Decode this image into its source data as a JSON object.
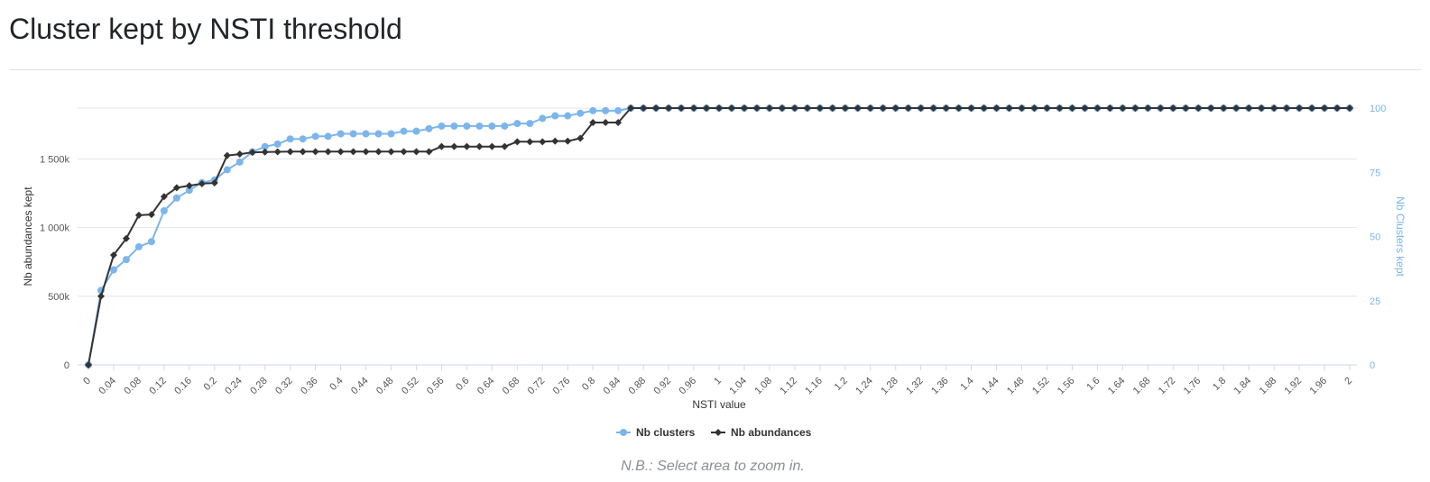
{
  "page": {
    "title": "Cluster kept by NSTI threshold",
    "footnote": "N.B.: Select area to zoom in."
  },
  "colors": {
    "clusters": "#7cb5ec",
    "abundances": "#333333",
    "grid": "#e6e6e6"
  },
  "chart_data": {
    "type": "line",
    "xlabel": "NSTI value",
    "ylabel_left": "Nb abundances kept",
    "ylabel_right": "Nb Clusters kept",
    "x": [
      0,
      0.02,
      0.04,
      0.06,
      0.08,
      0.1,
      0.12,
      0.14,
      0.16,
      0.18,
      0.2,
      0.22,
      0.24,
      0.26,
      0.28,
      0.3,
      0.32,
      0.34,
      0.36,
      0.38,
      0.4,
      0.42,
      0.44,
      0.46,
      0.48,
      0.5,
      0.52,
      0.54,
      0.56,
      0.58,
      0.6,
      0.62,
      0.64,
      0.66,
      0.68,
      0.7,
      0.72,
      0.74,
      0.76,
      0.78,
      0.8,
      0.82,
      0.84,
      0.86,
      0.88,
      0.9,
      0.92,
      0.94,
      0.96,
      0.98,
      1,
      1.02,
      1.04,
      1.06,
      1.08,
      1.1,
      1.12,
      1.14,
      1.16,
      1.18,
      1.2,
      1.22,
      1.24,
      1.26,
      1.28,
      1.3,
      1.32,
      1.34,
      1.36,
      1.38,
      1.4,
      1.42,
      1.44,
      1.46,
      1.48,
      1.5,
      1.52,
      1.54,
      1.56,
      1.58,
      1.6,
      1.62,
      1.64,
      1.66,
      1.68,
      1.7,
      1.72,
      1.74,
      1.76,
      1.78,
      1.8,
      1.82,
      1.84,
      1.86,
      1.88,
      1.9,
      1.92,
      1.94,
      1.96,
      1.98,
      2
    ],
    "x_tick_labels": [
      "0",
      "0.04",
      "0.08",
      "0.12",
      "0.16",
      "0.2",
      "0.24",
      "0.28",
      "0.32",
      "0.36",
      "0.4",
      "0.44",
      "0.48",
      "0.52",
      "0.56",
      "0.6",
      "0.64",
      "0.68",
      "0.72",
      "0.76",
      "0.8",
      "0.84",
      "0.88",
      "0.92",
      "0.96",
      "1",
      "1.04",
      "1.08",
      "1.12",
      "1.16",
      "1.2",
      "1.24",
      "1.28",
      "1.32",
      "1.36",
      "1.4",
      "1.44",
      "1.48",
      "1.52",
      "1.56",
      "1.6",
      "1.64",
      "1.68",
      "1.72",
      "1.76",
      "1.8",
      "1.84",
      "1.88",
      "1.92",
      "1.96",
      "2"
    ],
    "y_left_ticks": [
      0,
      500000,
      1000000,
      1500000
    ],
    "y_left_tick_labels": [
      "0",
      "500k",
      "1 000k",
      "1 500k"
    ],
    "y_left_range": [
      0,
      1870000
    ],
    "y_right_ticks": [
      0,
      25,
      50,
      75,
      100
    ],
    "y_right_tick_labels": [
      "0",
      "25",
      "50",
      "75",
      "100"
    ],
    "y_right_range": [
      0,
      100
    ],
    "grid": true,
    "legend_position": "bottom-center",
    "series": [
      {
        "name": "Nb clusters",
        "axis": "right",
        "marker": "circle",
        "values": [
          0,
          29,
          37,
          41,
          46,
          48,
          60,
          65,
          68,
          71,
          72,
          76,
          79,
          83,
          85,
          86,
          88,
          88,
          89,
          89,
          90,
          90,
          90,
          90,
          90,
          91,
          91,
          92,
          93,
          93,
          93,
          93,
          93,
          93,
          94,
          94,
          96,
          97,
          97,
          98,
          99,
          99,
          99,
          100,
          100,
          100,
          100,
          100,
          100,
          100,
          100,
          100,
          100,
          100,
          100,
          100,
          100,
          100,
          100,
          100,
          100,
          100,
          100,
          100,
          100,
          100,
          100,
          100,
          100,
          100,
          100,
          100,
          100,
          100,
          100,
          100,
          100,
          100,
          100,
          100,
          100,
          100,
          100,
          100,
          100,
          100,
          100,
          100,
          100,
          100,
          100,
          100,
          100,
          100,
          100,
          100,
          100,
          100,
          100,
          100,
          100
        ]
      },
      {
        "name": "Nb abundances",
        "axis": "left",
        "marker": "diamond",
        "values": [
          0,
          500000,
          800000,
          920000,
          1090000,
          1095000,
          1225000,
          1290000,
          1305000,
          1320000,
          1325000,
          1525000,
          1535000,
          1548000,
          1550000,
          1552000,
          1553000,
          1553000,
          1553000,
          1553000,
          1553000,
          1553000,
          1553000,
          1553000,
          1553000,
          1553000,
          1553000,
          1553000,
          1590000,
          1590000,
          1590000,
          1590000,
          1590000,
          1590000,
          1625000,
          1625000,
          1625000,
          1630000,
          1630000,
          1650000,
          1765000,
          1765000,
          1765000,
          1870000,
          1870000,
          1870000,
          1870000,
          1870000,
          1870000,
          1870000,
          1870000,
          1870000,
          1870000,
          1870000,
          1870000,
          1870000,
          1870000,
          1870000,
          1870000,
          1870000,
          1870000,
          1870000,
          1870000,
          1870000,
          1870000,
          1870000,
          1870000,
          1870000,
          1870000,
          1870000,
          1870000,
          1870000,
          1870000,
          1870000,
          1870000,
          1870000,
          1870000,
          1870000,
          1870000,
          1870000,
          1870000,
          1870000,
          1870000,
          1870000,
          1870000,
          1870000,
          1870000,
          1870000,
          1870000,
          1870000,
          1870000,
          1870000,
          1870000,
          1870000,
          1870000,
          1870000,
          1870000,
          1870000,
          1870000,
          1870000,
          1870000
        ]
      }
    ]
  }
}
